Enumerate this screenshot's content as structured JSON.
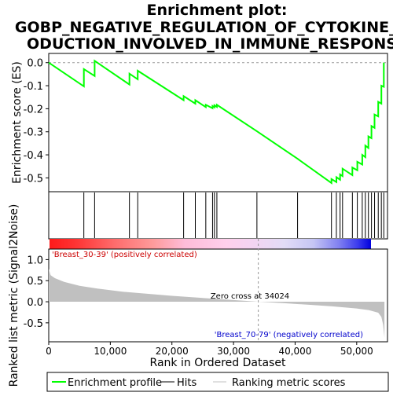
{
  "chart_data": {
    "type": "line",
    "title_line1": "Enrichment plot:",
    "title_line2": "GOBP_NEGATIVE_REGULATION_OF_CYTOKINE_PR",
    "title_line3": "ODUCTION_INVOLVED_IN_IMMUNE_RESPONSE",
    "es_panel": {
      "ylabel": "Enrichment score (ES)",
      "ylim": [
        -0.56,
        0.04
      ],
      "yticks": [
        0.0,
        -0.1,
        -0.2,
        -0.3,
        -0.4,
        -0.5
      ],
      "ytick_labels": [
        "0.0",
        "-0.1",
        "-0.2",
        "-0.3",
        "-0.4",
        "-0.5"
      ],
      "line_color": "#00ff00",
      "profile": [
        [
          0,
          0.0
        ],
        [
          5700,
          -0.103
        ],
        [
          5700,
          -0.028
        ],
        [
          7450,
          -0.058
        ],
        [
          7450,
          0.008
        ],
        [
          13100,
          -0.095
        ],
        [
          13100,
          -0.048
        ],
        [
          14450,
          -0.072
        ],
        [
          14450,
          -0.035
        ],
        [
          21900,
          -0.163
        ],
        [
          21900,
          -0.145
        ],
        [
          23800,
          -0.178
        ],
        [
          23800,
          -0.163
        ],
        [
          25500,
          -0.193
        ],
        [
          25500,
          -0.183
        ],
        [
          26600,
          -0.198
        ],
        [
          26600,
          -0.188
        ],
        [
          26900,
          -0.194
        ],
        [
          26900,
          -0.185
        ],
        [
          27300,
          -0.192
        ],
        [
          27300,
          -0.183
        ],
        [
          33800,
          -0.298
        ],
        [
          40400,
          -0.417
        ],
        [
          45900,
          -0.522
        ],
        [
          45900,
          -0.505
        ],
        [
          46700,
          -0.518
        ],
        [
          46700,
          -0.497
        ],
        [
          47300,
          -0.508
        ],
        [
          47300,
          -0.485
        ],
        [
          47700,
          -0.492
        ],
        [
          47700,
          -0.46
        ],
        [
          49300,
          -0.488
        ],
        [
          49300,
          -0.455
        ],
        [
          50100,
          -0.467
        ],
        [
          50100,
          -0.43
        ],
        [
          50900,
          -0.442
        ],
        [
          50900,
          -0.4
        ],
        [
          51400,
          -0.41
        ],
        [
          51400,
          -0.36
        ],
        [
          51900,
          -0.37
        ],
        [
          51900,
          -0.32
        ],
        [
          52400,
          -0.328
        ],
        [
          52400,
          -0.275
        ],
        [
          52900,
          -0.283
        ],
        [
          52900,
          -0.225
        ],
        [
          53500,
          -0.233
        ],
        [
          53500,
          -0.17
        ],
        [
          54000,
          -0.178
        ],
        [
          54000,
          -0.1
        ],
        [
          54400,
          -0.105
        ],
        [
          54400,
          0.0
        ]
      ]
    },
    "hits": [
      5700,
      7450,
      13100,
      14450,
      21900,
      23800,
      25500,
      26600,
      26900,
      27300,
      33800,
      40400,
      45900,
      46700,
      47300,
      47700,
      49300,
      50100,
      50900,
      51400,
      51900,
      52400,
      52900,
      53500,
      54000,
      54400
    ],
    "rank_bar": {
      "positive_label": "'Breast_30-39' (positively correlated)",
      "negative_label": "'Breast_70-79' (negatively correlated)",
      "positive_color": "#ff0000",
      "negative_color": "#0000ff"
    },
    "metric_panel": {
      "ylabel": "Ranked list metric (Signal2Noise)",
      "ylim": [
        -0.95,
        1.25
      ],
      "yticks": [
        1.0,
        0.5,
        0.0,
        -0.5
      ],
      "ytick_labels": [
        "1.0",
        "0.5",
        "0.0",
        "-0.5"
      ],
      "zero_cross_text": "Zero cross at 34024",
      "zero_cross": 34024,
      "fill_color": "#c0c0c0",
      "profile": [
        [
          0,
          0.78
        ],
        [
          300,
          0.63
        ],
        [
          1000,
          0.56
        ],
        [
          2500,
          0.47
        ],
        [
          5000,
          0.38
        ],
        [
          8000,
          0.31
        ],
        [
          12000,
          0.24
        ],
        [
          16000,
          0.19
        ],
        [
          20000,
          0.14
        ],
        [
          25000,
          0.09
        ],
        [
          30000,
          0.04
        ],
        [
          34024,
          0.0
        ],
        [
          38000,
          -0.03
        ],
        [
          42000,
          -0.07
        ],
        [
          46000,
          -0.11
        ],
        [
          50000,
          -0.16
        ],
        [
          52000,
          -0.2
        ],
        [
          53500,
          -0.26
        ],
        [
          54000,
          -0.36
        ],
        [
          54300,
          -0.55
        ],
        [
          54500,
          -0.85
        ]
      ]
    },
    "xlabel": "Rank in Ordered Dataset",
    "xlim": [
      0,
      55000
    ],
    "xticks": [
      0,
      10000,
      20000,
      30000,
      40000,
      50000
    ],
    "xtick_labels": [
      "0",
      "10,000",
      "20,000",
      "30,000",
      "40,000",
      "50,000"
    ],
    "legend": {
      "placement": "bottom",
      "entries": [
        {
          "label": "Enrichment profile",
          "color": "#00ff00"
        },
        {
          "label": "Hits",
          "color": "#000000"
        },
        {
          "label": "Ranking metric scores",
          "color": "#c0c0c0"
        }
      ]
    }
  }
}
